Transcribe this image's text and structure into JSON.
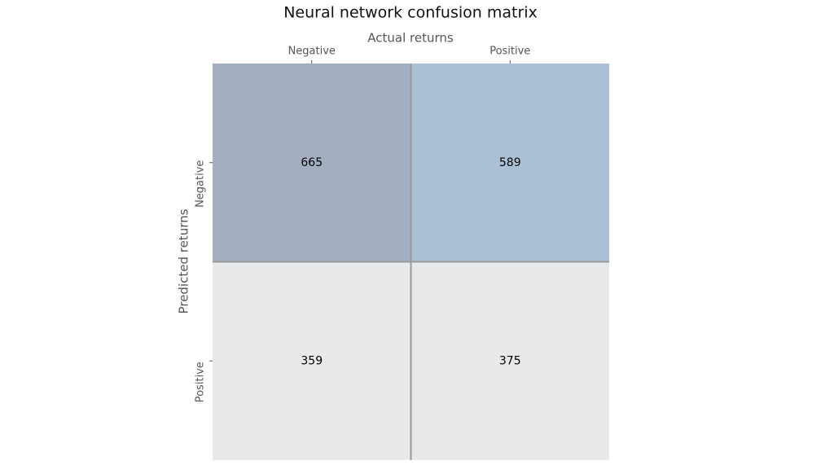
{
  "chart_data": {
    "type": "heatmap",
    "title": "Neural network confusion matrix",
    "x_label": "Actual returns",
    "y_label": "Predicted returns",
    "x_categories": [
      "Negative",
      "Positive"
    ],
    "y_categories": [
      "Negative",
      "Positive"
    ],
    "values": [
      [
        665,
        589
      ],
      [
        359,
        375
      ]
    ],
    "colors": [
      [
        "#a3aec0",
        "#aac1d5"
      ],
      [
        "#e8e9eb",
        "#e8e9eb"
      ]
    ],
    "grid_color": "#999999"
  }
}
